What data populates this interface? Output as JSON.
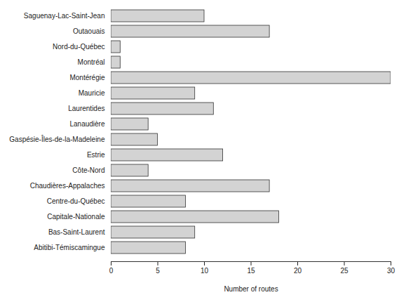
{
  "chart_data": {
    "type": "bar",
    "orientation": "horizontal",
    "categories": [
      "Saguenay-Lac-Saint-Jean",
      "Outaouais",
      "Nord-du-Québec",
      "Montréal",
      "Montérégie",
      "Mauricie",
      "Laurentides",
      "Lanaudière",
      "Gaspésie-Îles-de-la-Madeleine",
      "Estrie",
      "Côte-Nord",
      "Chaudières-Appalaches",
      "Centre-du-Québec",
      "Capitale-Nationale",
      "Bas-Saint-Laurent",
      "Abitibi-Témiscamingue"
    ],
    "values": [
      10,
      17,
      1,
      1,
      30,
      9,
      11,
      4,
      5,
      12,
      4,
      17,
      8,
      18,
      9,
      8
    ],
    "color": "#d3d3d3",
    "x_label": "Number of routes",
    "xlim": [
      0,
      30
    ],
    "xticks": [
      0,
      5,
      10,
      15,
      20,
      25,
      30
    ],
    "grid": false
  }
}
